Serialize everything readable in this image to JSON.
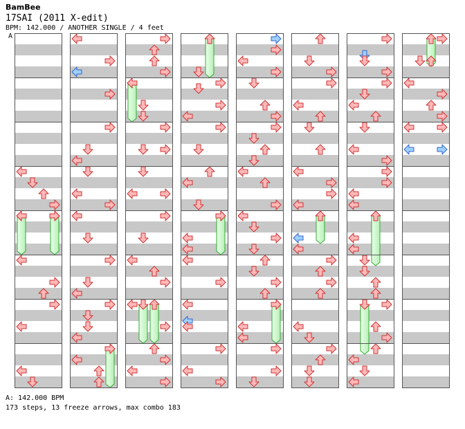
{
  "header": {
    "artist": "BamBee",
    "title": "17SAI (2011 X-edit)",
    "info": "BPM: 142.000 / ANOTHER SINGLE / 4 feet",
    "bpm_marker": "A"
  },
  "footer": {
    "bpm": "A: 142.000 BPM",
    "stats": "173 steps, 13 freeze arrows, max combo 183"
  },
  "colors": {
    "stripe": "#c8c8c8",
    "frame": "#555555",
    "note_fill": "#ffb8b8",
    "note_stroke": "#cc3333",
    "shock_fill": "#9fd0ff",
    "shock_stroke": "#3366cc",
    "freeze_fill": "#ccffcc",
    "freeze_stroke": "#33aa33"
  },
  "chart_data": {
    "type": "table",
    "columns": 8,
    "measures_per_column": 8,
    "lanes": [
      "left",
      "down",
      "up",
      "right"
    ],
    "notes": [
      {
        "c": 0,
        "r": 6,
        "l": 0
      },
      {
        "c": 0,
        "r": 6.5,
        "l": 1
      },
      {
        "c": 0,
        "r": 7,
        "l": 2
      },
      {
        "c": 0,
        "r": 7.5,
        "l": 3
      },
      {
        "c": 0,
        "r": 8,
        "l": 0
      },
      {
        "c": 0,
        "r": 8,
        "l": 3
      },
      {
        "c": 0,
        "r": 10,
        "l": 0
      },
      {
        "c": 0,
        "r": 11,
        "l": 3
      },
      {
        "c": 0,
        "r": 11.5,
        "l": 2
      },
      {
        "c": 0,
        "r": 12,
        "l": 3
      },
      {
        "c": 0,
        "r": 13,
        "l": 0
      },
      {
        "c": 0,
        "r": 15,
        "l": 0
      },
      {
        "c": 0,
        "r": 15.5,
        "l": 1
      },
      {
        "c": 1,
        "r": 0,
        "l": 0
      },
      {
        "c": 1,
        "r": 1,
        "l": 3
      },
      {
        "c": 1,
        "r": 1.5,
        "l": 0,
        "s": 1
      },
      {
        "c": 1,
        "r": 2.5,
        "l": 3
      },
      {
        "c": 1,
        "r": 4,
        "l": 3
      },
      {
        "c": 1,
        "r": 5,
        "l": 1
      },
      {
        "c": 1,
        "r": 5.5,
        "l": 0
      },
      {
        "c": 1,
        "r": 6,
        "l": 1
      },
      {
        "c": 1,
        "r": 7,
        "l": 0
      },
      {
        "c": 1,
        "r": 7.5,
        "l": 3
      },
      {
        "c": 1,
        "r": 8,
        "l": 0
      },
      {
        "c": 1,
        "r": 9,
        "l": 1
      },
      {
        "c": 1,
        "r": 10,
        "l": 3
      },
      {
        "c": 1,
        "r": 11,
        "l": 1
      },
      {
        "c": 1,
        "r": 11.5,
        "l": 0
      },
      {
        "c": 1,
        "r": 12,
        "l": 3
      },
      {
        "c": 1,
        "r": 12.5,
        "l": 1
      },
      {
        "c": 1,
        "r": 13,
        "l": 1
      },
      {
        "c": 1,
        "r": 13.5,
        "l": 0
      },
      {
        "c": 1,
        "r": 14.5,
        "l": 0
      },
      {
        "c": 1,
        "r": 15,
        "l": 2
      },
      {
        "c": 1,
        "r": 15.5,
        "l": 2
      },
      {
        "c": 2,
        "r": 0,
        "l": 3
      },
      {
        "c": 2,
        "r": 0.5,
        "l": 2
      },
      {
        "c": 2,
        "r": 1,
        "l": 2
      },
      {
        "c": 2,
        "r": 1.5,
        "l": 3
      },
      {
        "c": 2,
        "r": 2,
        "l": 0
      },
      {
        "c": 2,
        "r": 3,
        "l": 1
      },
      {
        "c": 2,
        "r": 3.5,
        "l": 1
      },
      {
        "c": 2,
        "r": 4,
        "l": 3
      },
      {
        "c": 2,
        "r": 5,
        "l": 1
      },
      {
        "c": 2,
        "r": 5,
        "l": 3
      },
      {
        "c": 2,
        "r": 6,
        "l": 1
      },
      {
        "c": 2,
        "r": 7,
        "l": 0
      },
      {
        "c": 2,
        "r": 7,
        "l": 3
      },
      {
        "c": 2,
        "r": 8,
        "l": 3
      },
      {
        "c": 2,
        "r": 9,
        "l": 1
      },
      {
        "c": 2,
        "r": 10,
        "l": 0
      },
      {
        "c": 2,
        "r": 10.5,
        "l": 2
      },
      {
        "c": 2,
        "r": 11,
        "l": 3
      },
      {
        "c": 2,
        "r": 12,
        "l": 0
      },
      {
        "c": 2,
        "r": 13,
        "l": 3
      },
      {
        "c": 2,
        "r": 14,
        "l": 2
      },
      {
        "c": 2,
        "r": 14.5,
        "l": 3
      },
      {
        "c": 2,
        "r": 15,
        "l": 0
      },
      {
        "c": 2,
        "r": 15.5,
        "l": 3
      },
      {
        "c": 3,
        "r": 1.5,
        "l": 1
      },
      {
        "c": 3,
        "r": 2,
        "l": 3
      },
      {
        "c": 3,
        "r": 2.25,
        "l": 1
      },
      {
        "c": 3,
        "r": 3,
        "l": 3
      },
      {
        "c": 3,
        "r": 3.5,
        "l": 0
      },
      {
        "c": 3,
        "r": 4,
        "l": 3
      },
      {
        "c": 3,
        "r": 5,
        "l": 1
      },
      {
        "c": 3,
        "r": 6,
        "l": 2
      },
      {
        "c": 3,
        "r": 6.5,
        "l": 0
      },
      {
        "c": 3,
        "r": 7.5,
        "l": 1
      },
      {
        "c": 3,
        "r": 8,
        "l": 3
      },
      {
        "c": 3,
        "r": 9,
        "l": 0
      },
      {
        "c": 3,
        "r": 9.5,
        "l": 0
      },
      {
        "c": 3,
        "r": 10,
        "l": 0
      },
      {
        "c": 3,
        "r": 11,
        "l": 3
      },
      {
        "c": 3,
        "r": 12,
        "l": 0
      },
      {
        "c": 3,
        "r": 12.75,
        "l": 0,
        "s": 1
      },
      {
        "c": 3,
        "r": 13,
        "l": 0
      },
      {
        "c": 3,
        "r": 14,
        "l": 3
      },
      {
        "c": 3,
        "r": 15,
        "l": 0
      },
      {
        "c": 3,
        "r": 15.5,
        "l": 3
      },
      {
        "c": 4,
        "r": 0,
        "l": 3,
        "s": 1
      },
      {
        "c": 4,
        "r": 0.5,
        "l": 3
      },
      {
        "c": 4,
        "r": 1,
        "l": 0
      },
      {
        "c": 4,
        "r": 1.5,
        "l": 3
      },
      {
        "c": 4,
        "r": 2,
        "l": 1
      },
      {
        "c": 4,
        "r": 3,
        "l": 2
      },
      {
        "c": 4,
        "r": 3.5,
        "l": 3
      },
      {
        "c": 4,
        "r": 4,
        "l": 3
      },
      {
        "c": 4,
        "r": 4.5,
        "l": 1
      },
      {
        "c": 4,
        "r": 5,
        "l": 2
      },
      {
        "c": 4,
        "r": 5.5,
        "l": 1
      },
      {
        "c": 4,
        "r": 6,
        "l": 0
      },
      {
        "c": 4,
        "r": 6.5,
        "l": 2
      },
      {
        "c": 4,
        "r": 7.5,
        "l": 3
      },
      {
        "c": 4,
        "r": 8,
        "l": 0
      },
      {
        "c": 4,
        "r": 8.5,
        "l": 1
      },
      {
        "c": 4,
        "r": 9,
        "l": 3
      },
      {
        "c": 4,
        "r": 9.5,
        "l": 1
      },
      {
        "c": 4,
        "r": 10,
        "l": 2
      },
      {
        "c": 4,
        "r": 10.5,
        "l": 1
      },
      {
        "c": 4,
        "r": 11,
        "l": 3
      },
      {
        "c": 4,
        "r": 11.5,
        "l": 2
      },
      {
        "c": 4,
        "r": 12,
        "l": 3
      },
      {
        "c": 4,
        "r": 13,
        "l": 0
      },
      {
        "c": 4,
        "r": 13.5,
        "l": 0
      },
      {
        "c": 4,
        "r": 14,
        "l": 3
      },
      {
        "c": 4,
        "r": 15,
        "l": 3
      },
      {
        "c": 4,
        "r": 15.5,
        "l": 1
      },
      {
        "c": 5,
        "r": 0,
        "l": 2
      },
      {
        "c": 5,
        "r": 1,
        "l": 1
      },
      {
        "c": 5,
        "r": 1.5,
        "l": 3
      },
      {
        "c": 5,
        "r": 2,
        "l": 3
      },
      {
        "c": 5,
        "r": 3,
        "l": 0
      },
      {
        "c": 5,
        "r": 3.5,
        "l": 2
      },
      {
        "c": 5,
        "r": 4,
        "l": 1
      },
      {
        "c": 5,
        "r": 5,
        "l": 2
      },
      {
        "c": 5,
        "r": 6,
        "l": 0
      },
      {
        "c": 5,
        "r": 6.5,
        "l": 3
      },
      {
        "c": 5,
        "r": 7,
        "l": 3
      },
      {
        "c": 5,
        "r": 7.5,
        "l": 0
      },
      {
        "c": 5,
        "r": 9,
        "l": 0,
        "s": 1
      },
      {
        "c": 5,
        "r": 9.5,
        "l": 0
      },
      {
        "c": 5,
        "r": 10,
        "l": 3
      },
      {
        "c": 5,
        "r": 10.5,
        "l": 2
      },
      {
        "c": 5,
        "r": 11,
        "l": 3
      },
      {
        "c": 5,
        "r": 11.5,
        "l": 2
      },
      {
        "c": 5,
        "r": 13,
        "l": 0
      },
      {
        "c": 5,
        "r": 13.5,
        "l": 1
      },
      {
        "c": 5,
        "r": 14,
        "l": 3
      },
      {
        "c": 5,
        "r": 14.5,
        "l": 2
      },
      {
        "c": 5,
        "r": 15,
        "l": 1
      },
      {
        "c": 5,
        "r": 15.5,
        "l": 1
      },
      {
        "c": 6,
        "r": 0,
        "l": 3
      },
      {
        "c": 6,
        "r": 0.75,
        "l": 1,
        "s": 1
      },
      {
        "c": 6,
        "r": 1,
        "l": 1
      },
      {
        "c": 6,
        "r": 1.5,
        "l": 3
      },
      {
        "c": 6,
        "r": 2,
        "l": 3
      },
      {
        "c": 6,
        "r": 2.5,
        "l": 1
      },
      {
        "c": 6,
        "r": 3,
        "l": 0
      },
      {
        "c": 6,
        "r": 3.5,
        "l": 2
      },
      {
        "c": 6,
        "r": 4,
        "l": 1
      },
      {
        "c": 6,
        "r": 5,
        "l": 0
      },
      {
        "c": 6,
        "r": 5.5,
        "l": 3
      },
      {
        "c": 6,
        "r": 6,
        "l": 3
      },
      {
        "c": 6,
        "r": 6.5,
        "l": 3
      },
      {
        "c": 6,
        "r": 7,
        "l": 0
      },
      {
        "c": 6,
        "r": 7.5,
        "l": 0
      },
      {
        "c": 6,
        "r": 9,
        "l": 0
      },
      {
        "c": 6,
        "r": 9.5,
        "l": 0
      },
      {
        "c": 6,
        "r": 10,
        "l": 1
      },
      {
        "c": 6,
        "r": 10.5,
        "l": 1
      },
      {
        "c": 6,
        "r": 11,
        "l": 2
      },
      {
        "c": 6,
        "r": 11.5,
        "l": 2
      },
      {
        "c": 6,
        "r": 12,
        "l": 3
      },
      {
        "c": 6,
        "r": 13,
        "l": 2
      },
      {
        "c": 6,
        "r": 13.5,
        "l": 3
      },
      {
        "c": 6,
        "r": 14,
        "l": 2
      },
      {
        "c": 6,
        "r": 14.5,
        "l": 0
      },
      {
        "c": 6,
        "r": 15,
        "l": 1
      },
      {
        "c": 6,
        "r": 15.5,
        "l": 0
      },
      {
        "c": 7,
        "r": 0,
        "l": 3
      },
      {
        "c": 7,
        "r": 1,
        "l": 1
      },
      {
        "c": 7,
        "r": 1,
        "l": 2
      },
      {
        "c": 7,
        "r": 2,
        "l": 0
      },
      {
        "c": 7,
        "r": 2.5,
        "l": 3
      },
      {
        "c": 7,
        "r": 3,
        "l": 2
      },
      {
        "c": 7,
        "r": 3.5,
        "l": 3
      },
      {
        "c": 7,
        "r": 4,
        "l": 0
      },
      {
        "c": 7,
        "r": 4,
        "l": 3
      },
      {
        "c": 7,
        "r": 5,
        "l": 0,
        "s": 1
      },
      {
        "c": 7,
        "r": 5,
        "l": 3,
        "s": 1
      }
    ],
    "freezes": [
      {
        "c": 0,
        "r0": 8,
        "r1": 9.75,
        "l": 0
      },
      {
        "c": 0,
        "r0": 8,
        "r1": 9.75,
        "l": 3
      },
      {
        "c": 1,
        "r0": 14,
        "r1": 15.75,
        "l": 3
      },
      {
        "c": 2,
        "r0": 2,
        "r1": 3.75,
        "l": 0
      },
      {
        "c": 2,
        "r0": 12,
        "r1": 13.75,
        "l": 1
      },
      {
        "c": 2,
        "r0": 12,
        "r1": 13.75,
        "l": 2
      },
      {
        "c": 3,
        "r0": 0,
        "r1": 1.75,
        "l": 2
      },
      {
        "c": 3,
        "r0": 8,
        "r1": 9.75,
        "l": 3
      },
      {
        "c": 4,
        "r0": 12,
        "r1": 13.75,
        "l": 3
      },
      {
        "c": 5,
        "r0": 8,
        "r1": 9.25,
        "l": 2
      },
      {
        "c": 6,
        "r0": 8,
        "r1": 10.25,
        "l": 2
      },
      {
        "c": 6,
        "r0": 12,
        "r1": 14.25,
        "l": 1
      },
      {
        "c": 7,
        "r0": 0,
        "r1": 1.25,
        "l": 2
      }
    ]
  }
}
